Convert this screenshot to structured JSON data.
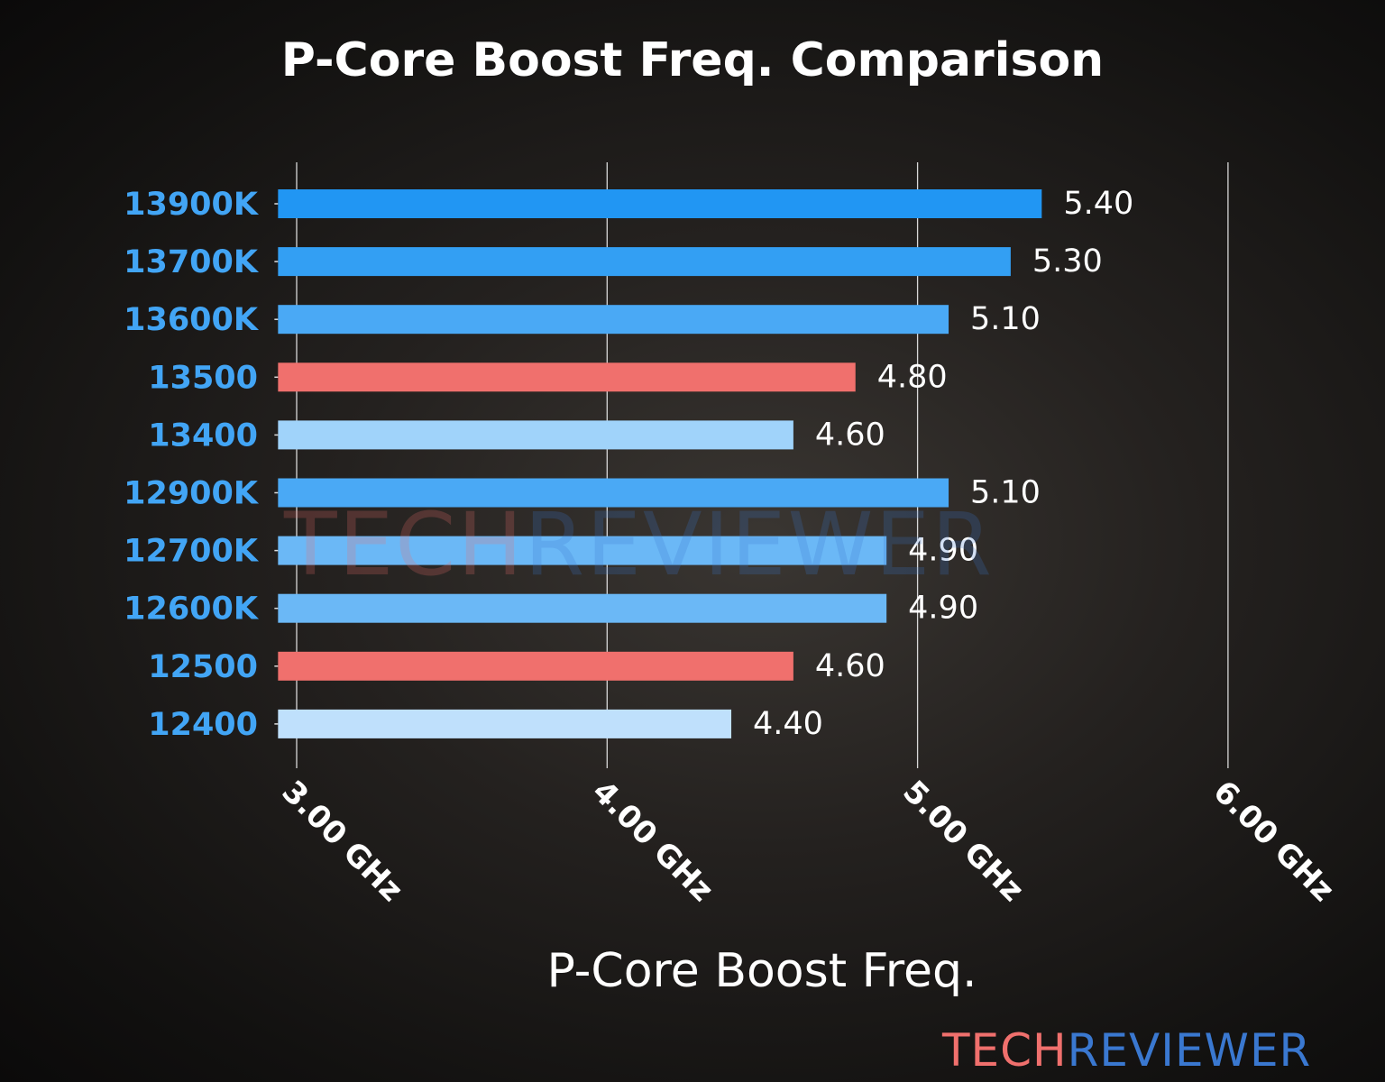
{
  "chart_data": {
    "type": "bar",
    "orientation": "horizontal",
    "title": "P-Core Boost Freq. Comparison",
    "xlabel": "P-Core Boost Freq.",
    "ylabel": "",
    "categories": [
      "13900K",
      "13700K",
      "13600K",
      "13500",
      "13400",
      "12900K",
      "12700K",
      "12600K",
      "12500",
      "12400"
    ],
    "values": [
      5.4,
      5.3,
      5.1,
      4.8,
      4.6,
      5.1,
      4.9,
      4.9,
      4.6,
      4.4
    ],
    "value_labels": [
      "5.40",
      "5.30",
      "5.10",
      "4.80",
      "4.60",
      "5.10",
      "4.90",
      "4.90",
      "4.60",
      "4.40"
    ],
    "bar_colors": [
      "#2196f3",
      "#339ff3",
      "#4aa9f5",
      "#f0706d",
      "#a0d3fa",
      "#4aa9f5",
      "#6bb8f6",
      "#6bb8f6",
      "#f0706d",
      "#bfe0fc"
    ],
    "xticks": [
      3,
      4,
      5,
      6
    ],
    "xtick_labels": [
      "3.00 GHz",
      "4.00 GHz",
      "5.00 GHz",
      "6.00 GHz"
    ],
    "xlim": [
      2.94,
      6.0
    ],
    "grid": "vertical",
    "category_label_color": "#42a5f5"
  },
  "watermark": {
    "part1": "TECH",
    "part2": "REVIEWER",
    "color1": "#f0706d",
    "color2": "#3a78d0"
  }
}
